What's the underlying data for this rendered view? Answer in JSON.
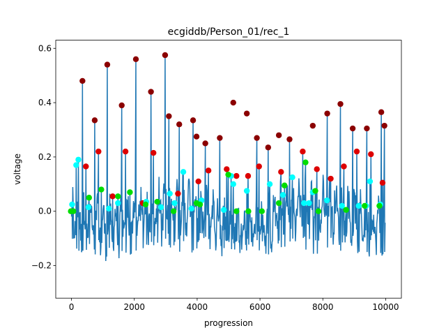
{
  "chart_data": {
    "type": "line",
    "title": "ecgiddb/Person_01/rec_1",
    "xlabel": "progression",
    "ylabel": "voltage",
    "xlim": [
      -500,
      10500
    ],
    "ylim": [
      -0.32,
      0.63
    ],
    "xticks": [
      0,
      2000,
      4000,
      6000,
      8000,
      10000
    ],
    "yticks": [
      -0.2,
      0.0,
      0.2,
      0.4,
      0.6
    ],
    "xtick_labels": [
      "0",
      "2000",
      "4000",
      "6000",
      "8000",
      "10000"
    ],
    "ytick_labels": [
      "−0.2",
      "0.0",
      "0.2",
      "0.4",
      "0.6"
    ],
    "grid": false,
    "signal_color": "#1f77b4",
    "series": [
      {
        "marker_color": "#8b0000",
        "points": [
          [
            350,
            0.48
          ],
          [
            740,
            0.335
          ],
          [
            1140,
            0.54
          ],
          [
            1600,
            0.39
          ],
          [
            2050,
            0.56
          ],
          [
            2530,
            0.44
          ],
          [
            2980,
            0.575
          ],
          [
            3100,
            0.35
          ],
          [
            3430,
            0.32
          ],
          [
            3870,
            0.335
          ],
          [
            3980,
            0.275
          ],
          [
            4260,
            0.25
          ],
          [
            4720,
            0.27
          ],
          [
            5150,
            0.4
          ],
          [
            5580,
            0.36
          ],
          [
            5900,
            0.27
          ],
          [
            6260,
            0.235
          ],
          [
            6600,
            0.28
          ],
          [
            6940,
            0.265
          ],
          [
            7680,
            0.315
          ],
          [
            8140,
            0.36
          ],
          [
            8560,
            0.395
          ],
          [
            8950,
            0.305
          ],
          [
            9400,
            0.305
          ],
          [
            9860,
            0.365
          ],
          [
            9960,
            0.315
          ]
        ]
      },
      {
        "marker_color": "#dd0000",
        "points": [
          [
            460,
            0.165
          ],
          [
            860,
            0.22
          ],
          [
            1310,
            0.055
          ],
          [
            1720,
            0.22
          ],
          [
            2270,
            0.03
          ],
          [
            2610,
            0.215
          ],
          [
            3390,
            0.065
          ],
          [
            4040,
            0.11
          ],
          [
            4360,
            0.15
          ],
          [
            4940,
            0.155
          ],
          [
            5250,
            0.13
          ],
          [
            5620,
            0.13
          ],
          [
            5970,
            0.165
          ],
          [
            6670,
            0.145
          ],
          [
            7360,
            0.22
          ],
          [
            7810,
            0.155
          ],
          [
            8250,
            0.12
          ],
          [
            8670,
            0.165
          ],
          [
            9080,
            0.22
          ],
          [
            9530,
            0.21
          ],
          [
            9900,
            0.105
          ]
        ]
      },
      {
        "marker_color": "#00ffff",
        "points": [
          [
            20,
            0.025
          ],
          [
            150,
            0.17
          ],
          [
            220,
            0.19
          ],
          [
            540,
            0.015
          ],
          [
            1190,
            0.01
          ],
          [
            1480,
            0.03
          ],
          [
            2380,
            0.035
          ],
          [
            2850,
            0.015
          ],
          [
            3130,
            0.065
          ],
          [
            3280,
            0.03
          ],
          [
            3560,
            0.145
          ],
          [
            3820,
            0.01
          ],
          [
            4140,
            0.04
          ],
          [
            4850,
            0.005
          ],
          [
            5080,
            0.13
          ],
          [
            5150,
            0.1
          ],
          [
            5580,
            0.075
          ],
          [
            6310,
            0.1
          ],
          [
            6730,
            0.06
          ],
          [
            7030,
            0.125
          ],
          [
            7400,
            0.03
          ],
          [
            7560,
            0.03
          ],
          [
            7680,
            0.07
          ],
          [
            8130,
            0.04
          ],
          [
            8610,
            0.02
          ],
          [
            9140,
            0.02
          ],
          [
            9380,
            0.02
          ],
          [
            9500,
            0.11
          ],
          [
            9830,
            0.025
          ]
        ]
      },
      {
        "marker_color": "#00dd00",
        "points": [
          [
            -20,
            0.0
          ],
          [
            60,
            0.0
          ],
          [
            560,
            0.05
          ],
          [
            950,
            0.08
          ],
          [
            1480,
            0.055
          ],
          [
            1860,
            0.07
          ],
          [
            2360,
            0.025
          ],
          [
            2730,
            0.035
          ],
          [
            3250,
            0.0
          ],
          [
            3980,
            0.03
          ],
          [
            4090,
            0.025
          ],
          [
            4990,
            0.135
          ],
          [
            5250,
            0.0
          ],
          [
            5630,
            0.0
          ],
          [
            6060,
            0.0
          ],
          [
            6600,
            0.03
          ],
          [
            6780,
            0.095
          ],
          [
            7450,
            0.18
          ],
          [
            7760,
            0.075
          ],
          [
            7860,
            0.0
          ],
          [
            8740,
            0.005
          ],
          [
            9330,
            0.02
          ],
          [
            9800,
            0.02
          ]
        ]
      }
    ]
  }
}
